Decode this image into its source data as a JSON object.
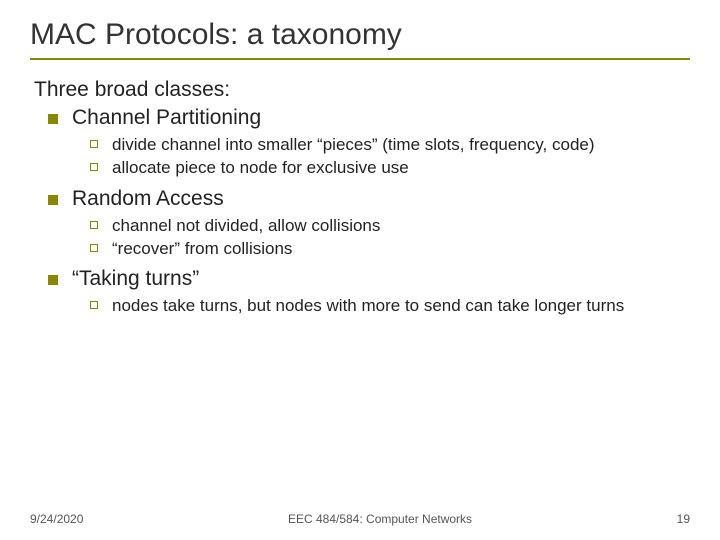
{
  "title": "MAC Protocols: a taxonomy",
  "intro": "Three broad classes:",
  "items": [
    {
      "label": "Channel Partitioning",
      "sub": [
        "divide channel into smaller “pieces” (time slots, frequency, code)",
        "allocate piece to node for exclusive use"
      ]
    },
    {
      "label": "Random Access",
      "sub": [
        "channel not divided, allow collisions",
        "“recover” from collisions"
      ]
    },
    {
      "label": "“Taking turns”",
      "sub": [
        "nodes take turns, but nodes with more to send can take longer turns"
      ]
    }
  ],
  "footer": {
    "date": "9/24/2020",
    "course": "EEC 484/584: Computer Networks",
    "page": "19"
  },
  "colors": {
    "accent": "#888800",
    "text": "#222222",
    "footer_text": "#555555",
    "background": "#ffffff"
  }
}
